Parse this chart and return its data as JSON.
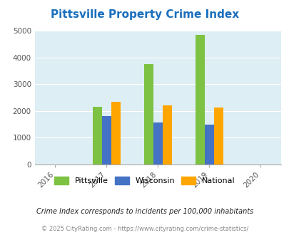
{
  "title": "Pittsville Property Crime Index",
  "title_color": "#1a6fbd",
  "years": [
    2016,
    2017,
    2018,
    2019,
    2020
  ],
  "bar_years": [
    2017,
    2018,
    2019
  ],
  "pittsville": [
    2155,
    3750,
    4830
  ],
  "wisconsin": [
    1820,
    1560,
    1490
  ],
  "national": [
    2350,
    2200,
    2130
  ],
  "pittsville_color": "#7dc242",
  "wisconsin_color": "#4472c4",
  "national_color": "#ffa500",
  "ylim": [
    0,
    5000
  ],
  "yticks": [
    0,
    1000,
    2000,
    3000,
    4000,
    5000
  ],
  "bg_color": "#ddeef4",
  "legend_labels": [
    "Pittsville",
    "Wisconsin",
    "National"
  ],
  "footnote1": "Crime Index corresponds to incidents per 100,000 inhabitants",
  "footnote2": "© 2025 CityRating.com - https://www.cityrating.com/crime-statistics/",
  "bar_width": 0.18
}
